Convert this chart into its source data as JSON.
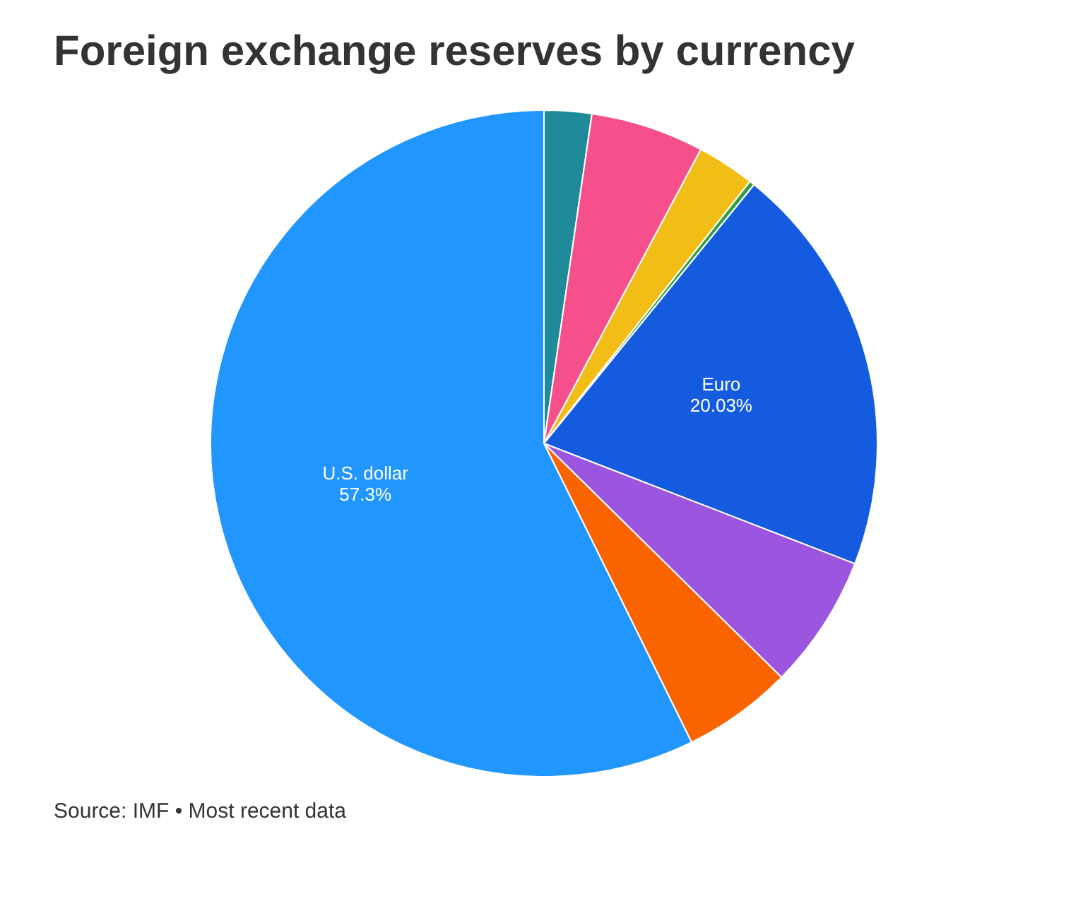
{
  "chart_data": {
    "type": "pie",
    "title": "Foreign exchange reserves by currency",
    "categories": [
      null,
      null,
      null,
      null,
      "Euro",
      null,
      null,
      "U.S. dollar"
    ],
    "values": [
      2.3,
      5.5,
      2.8,
      0.25,
      20.03,
      6.5,
      5.32,
      57.3
    ],
    "colors": [
      "#1f8a99",
      "#f5508c",
      "#f2bd16",
      "#2ea043",
      "#155be0",
      "#9b55de",
      "#fa6400",
      "#2196ff"
    ],
    "value_labels": [
      null,
      null,
      null,
      null,
      "20.03%",
      null,
      null,
      "57.3%"
    ],
    "annotations": [
      "Source: IMF • Most recent data"
    ]
  }
}
